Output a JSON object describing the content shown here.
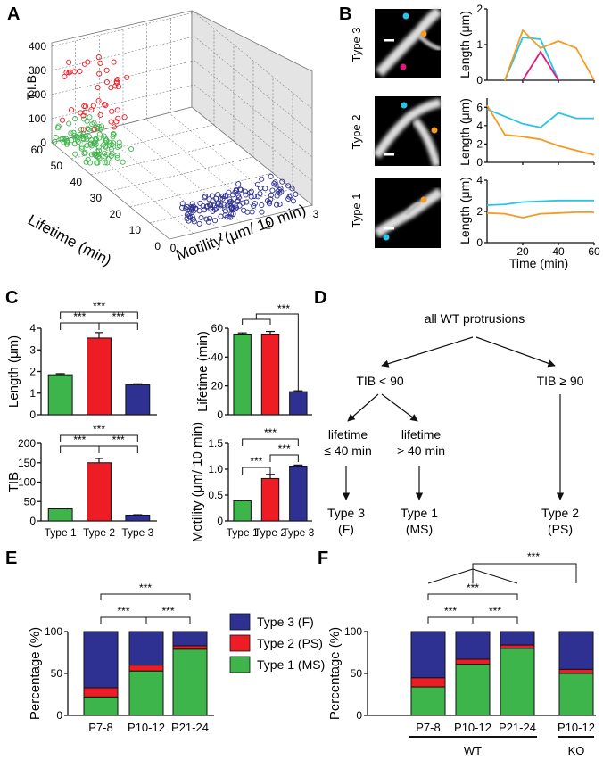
{
  "panels": {
    "A": "A",
    "B": "B",
    "C": "C",
    "D": "D",
    "E": "E",
    "F": "F"
  },
  "colors": {
    "type1": "#3db54a",
    "type2": "#ee1c24",
    "type3": "#2e3192",
    "blue_line": "#27c4e8",
    "orange_line": "#f59a23",
    "magenta_line": "#e0197d"
  },
  "panel_a": {
    "z_label": "T.I.B.",
    "lifetime_label": "Lifetime (min)",
    "motility_label": "Motility (μm/ 10 min)",
    "z_ticks": [
      "0",
      "100",
      "200",
      "300",
      "400"
    ],
    "lifetime_ticks": [
      "0",
      "10",
      "20",
      "30",
      "40",
      "50",
      "60"
    ],
    "motility_ticks": [
      "0",
      "1",
      "2",
      "3"
    ]
  },
  "panel_b": {
    "rows": [
      {
        "label": "Type 3",
        "ylabel": "Length (μm)",
        "ymax_label": "2",
        "yticks": [
          "0",
          "1",
          "2"
        ]
      },
      {
        "label": "Type 2",
        "ylabel": "Length (μm)",
        "yticks": [
          "0",
          "2",
          "4",
          "6"
        ]
      },
      {
        "label": "Type 1",
        "ylabel": "Length (μm)",
        "yticks": [
          "0",
          "2",
          "4"
        ]
      }
    ],
    "xticks": [
      "20",
      "40",
      "60"
    ],
    "xlabel": "Time (min)"
  },
  "panel_d": {
    "root": "all WT protrusions",
    "left": "TIB < 90",
    "right": "TIB ≥ 90",
    "ll1": "lifetime",
    "ll2": "≤ 40 min",
    "lr1": "lifetime",
    "lr2": "> 40 min",
    "out1a": "Type 3",
    "out1b": "(F)",
    "out2a": "Type 1",
    "out2b": "(MS)",
    "out3a": "Type 2",
    "out3b": "(PS)"
  },
  "legend": {
    "type3": "Type 3 (F)",
    "type2": "Type 2 (PS)",
    "type1": "Type 1 (MS)"
  },
  "sig": "***",
  "chart_data": [
    {
      "id": "C-length",
      "type": "bar",
      "categories": [
        "Type 1",
        "Type 2",
        "Type 3"
      ],
      "values": [
        1.85,
        3.55,
        1.38
      ],
      "errors": [
        0.05,
        0.25,
        0.05
      ],
      "ylabel": "Length (μm)",
      "ylim": [
        0,
        4
      ],
      "yticks": [
        "0",
        "1",
        "2",
        "3",
        "4"
      ],
      "significance": [
        "***",
        "***",
        "***"
      ]
    },
    {
      "id": "C-lifetime",
      "type": "bar",
      "categories": [
        "Type 1",
        "Type 2",
        "Type 3"
      ],
      "values": [
        56,
        56,
        16
      ],
      "errors": [
        0.8,
        1.8,
        0.6
      ],
      "ylabel": "Lifetime (min)",
      "ylim": [
        0,
        60
      ],
      "yticks": [
        "0",
        "20",
        "40",
        "60"
      ],
      "significance": [
        "***"
      ]
    },
    {
      "id": "C-tib",
      "type": "bar",
      "categories": [
        "Type 1",
        "Type 2",
        "Type 3"
      ],
      "values": [
        31,
        150,
        15
      ],
      "errors": [
        1,
        11,
        1
      ],
      "ylabel": "TIB",
      "ylim": [
        0,
        200
      ],
      "yticks": [
        "0",
        "50",
        "100",
        "150",
        "200"
      ],
      "significance": [
        "***",
        "***",
        "***"
      ]
    },
    {
      "id": "C-motility",
      "type": "bar",
      "categories": [
        "Type 1",
        "Type 2",
        "Type 3"
      ],
      "values": [
        0.39,
        0.82,
        1.06
      ],
      "errors": [
        0.01,
        0.08,
        0.02
      ],
      "ylabel": "Motility (μm/ 10 min)",
      "ylim": [
        0,
        1.5
      ],
      "yticks": [
        "0",
        "0.5",
        "1.0",
        "1.5"
      ],
      "significance": [
        "***",
        "***",
        "***"
      ]
    },
    {
      "id": "E",
      "type": "bar",
      "stacked": true,
      "categories": [
        "P7-8",
        "P10-12",
        "P21-24"
      ],
      "series": [
        {
          "name": "Type 1 (MS)",
          "values": [
            22,
            53,
            79
          ]
        },
        {
          "name": "Type 2 (PS)",
          "values": [
            11,
            7,
            4
          ]
        },
        {
          "name": "Type 3 (F)",
          "values": [
            67,
            40,
            17
          ]
        }
      ],
      "ylabel": "Percentage (%)",
      "ylim": [
        0,
        100
      ],
      "yticks": [
        "0",
        "50",
        "100"
      ],
      "significance": [
        "***",
        "***",
        "***"
      ]
    },
    {
      "id": "F",
      "type": "bar",
      "stacked": true,
      "categories": [
        "P7-8",
        "P10-12",
        "P21-24",
        "P10-12"
      ],
      "groups": [
        "WT",
        "KO"
      ],
      "series": [
        {
          "name": "Type 1 (MS)",
          "values": [
            34,
            61,
            80,
            50
          ]
        },
        {
          "name": "Type 2 (PS)",
          "values": [
            11,
            6,
            4,
            5
          ]
        },
        {
          "name": "Type 3 (F)",
          "values": [
            55,
            33,
            16,
            45
          ]
        }
      ],
      "ylabel": "Percentage (%)",
      "ylim": [
        0,
        100
      ],
      "yticks": [
        "0",
        "50",
        "100"
      ],
      "significance": [
        "***",
        "***",
        "***",
        "***"
      ]
    },
    {
      "id": "B-type3",
      "type": "line",
      "xlim": [
        0,
        60
      ],
      "ylim": [
        0,
        2
      ],
      "series": [
        {
          "color": "cyan",
          "x": [
            10,
            20,
            30,
            40
          ],
          "y": [
            0,
            1.2,
            1.15,
            0
          ]
        },
        {
          "color": "orange",
          "x": [
            10,
            20,
            30,
            40,
            50,
            60
          ],
          "y": [
            0,
            1.4,
            0.9,
            1.1,
            0.9,
            0
          ]
        },
        {
          "color": "magenta",
          "x": [
            20,
            30,
            40
          ],
          "y": [
            0,
            0.8,
            0
          ]
        }
      ]
    },
    {
      "id": "B-type2",
      "type": "line",
      "xlim": [
        0,
        60
      ],
      "ylim": [
        0,
        7
      ],
      "series": [
        {
          "color": "cyan",
          "x": [
            0,
            10,
            20,
            30,
            40,
            50,
            60
          ],
          "y": [
            5.8,
            5,
            4.2,
            3.8,
            5.4,
            4.8,
            4.8
          ]
        },
        {
          "color": "orange",
          "x": [
            0,
            10,
            20,
            30,
            40,
            50,
            60
          ],
          "y": [
            6.2,
            3,
            2.8,
            2.5,
            1.8,
            1.3,
            0.8
          ]
        }
      ]
    },
    {
      "id": "B-type1",
      "type": "line",
      "xlim": [
        0,
        60
      ],
      "ylim": [
        0,
        4
      ],
      "series": [
        {
          "color": "cyan",
          "x": [
            0,
            10,
            20,
            30,
            40,
            50,
            60
          ],
          "y": [
            2.4,
            2.45,
            2.6,
            2.65,
            2.7,
            2.7,
            2.7
          ]
        },
        {
          "color": "orange",
          "x": [
            0,
            10,
            20,
            30,
            40,
            50,
            60
          ],
          "y": [
            1.9,
            1.85,
            1.6,
            1.85,
            1.9,
            1.95,
            1.95
          ]
        }
      ]
    }
  ]
}
